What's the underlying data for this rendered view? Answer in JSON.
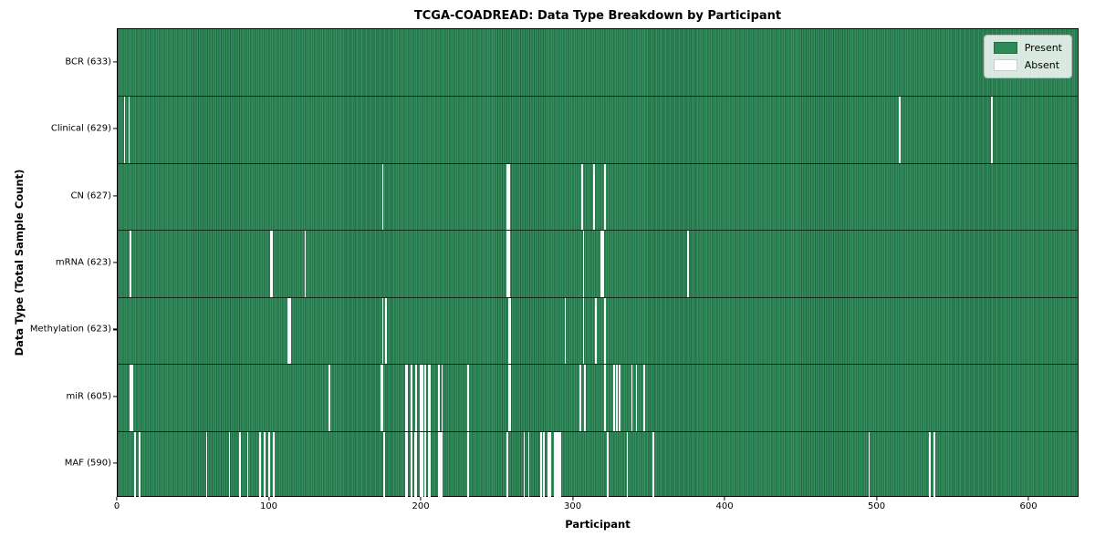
{
  "title": "TCGA-COADREAD: Data Type Breakdown by Participant",
  "chart_data": {
    "type": "heatmap",
    "title": "TCGA-COADREAD: Data Type Breakdown by Participant",
    "xlabel": "Participant",
    "ylabel": "Data Type (Total Sample Count)",
    "xlim": [
      0,
      633
    ],
    "n_participants": 633,
    "x_ticks": [
      0,
      100,
      200,
      300,
      400,
      500,
      600
    ],
    "grid": false,
    "legend_position": "upper right",
    "colors": {
      "present": "#2e8b57",
      "absent": "#ffffff",
      "row_separator": "#10281a"
    },
    "legend": {
      "entries": [
        {
          "label": "Present",
          "color": "#2e8b57"
        },
        {
          "label": "Absent",
          "color": "#ffffff"
        }
      ]
    },
    "rows": [
      {
        "label": "BCR (633)",
        "data_type": "BCR",
        "total_samples": 633,
        "absent_count": 0,
        "absent_participants": []
      },
      {
        "label": "Clinical (629)",
        "data_type": "Clinical",
        "total_samples": 629,
        "absent_count": 4,
        "absent_participants": [
          4,
          7,
          514,
          575
        ]
      },
      {
        "label": "CN (627)",
        "data_type": "CN",
        "total_samples": 627,
        "absent_count": 6,
        "absent_participants": [
          174,
          256,
          257,
          305,
          313,
          320
        ]
      },
      {
        "label": "mRNA (623)",
        "data_type": "mRNA",
        "total_samples": 623,
        "absent_count": 10,
        "absent_participants": [
          8,
          100,
          101,
          123,
          256,
          257,
          306,
          318,
          319,
          375
        ]
      },
      {
        "label": "Methylation (623)",
        "data_type": "Methylation",
        "total_samples": 623,
        "absent_count": 10,
        "absent_participants": [
          112,
          113,
          174,
          176,
          257,
          258,
          294,
          306,
          314,
          320
        ]
      },
      {
        "label": "miR (605)",
        "data_type": "miR",
        "total_samples": 605,
        "absent_count": 28,
        "absent_participants": [
          8,
          9,
          139,
          173,
          174,
          189,
          190,
          193,
          196,
          199,
          200,
          202,
          204,
          205,
          211,
          213,
          230,
          257,
          258,
          304,
          307,
          320,
          326,
          328,
          330,
          338,
          341,
          346
        ]
      },
      {
        "label": "MAF (590)",
        "data_type": "MAF",
        "total_samples": 590,
        "absent_count": 43,
        "absent_participants": [
          11,
          14,
          58,
          73,
          80,
          85,
          93,
          96,
          99,
          102,
          175,
          189,
          190,
          193,
          195,
          196,
          199,
          200,
          202,
          204,
          205,
          211,
          212,
          213,
          230,
          256,
          267,
          270,
          278,
          280,
          283,
          284,
          287,
          288,
          289,
          290,
          291,
          322,
          335,
          352,
          494,
          534,
          537
        ]
      }
    ]
  }
}
